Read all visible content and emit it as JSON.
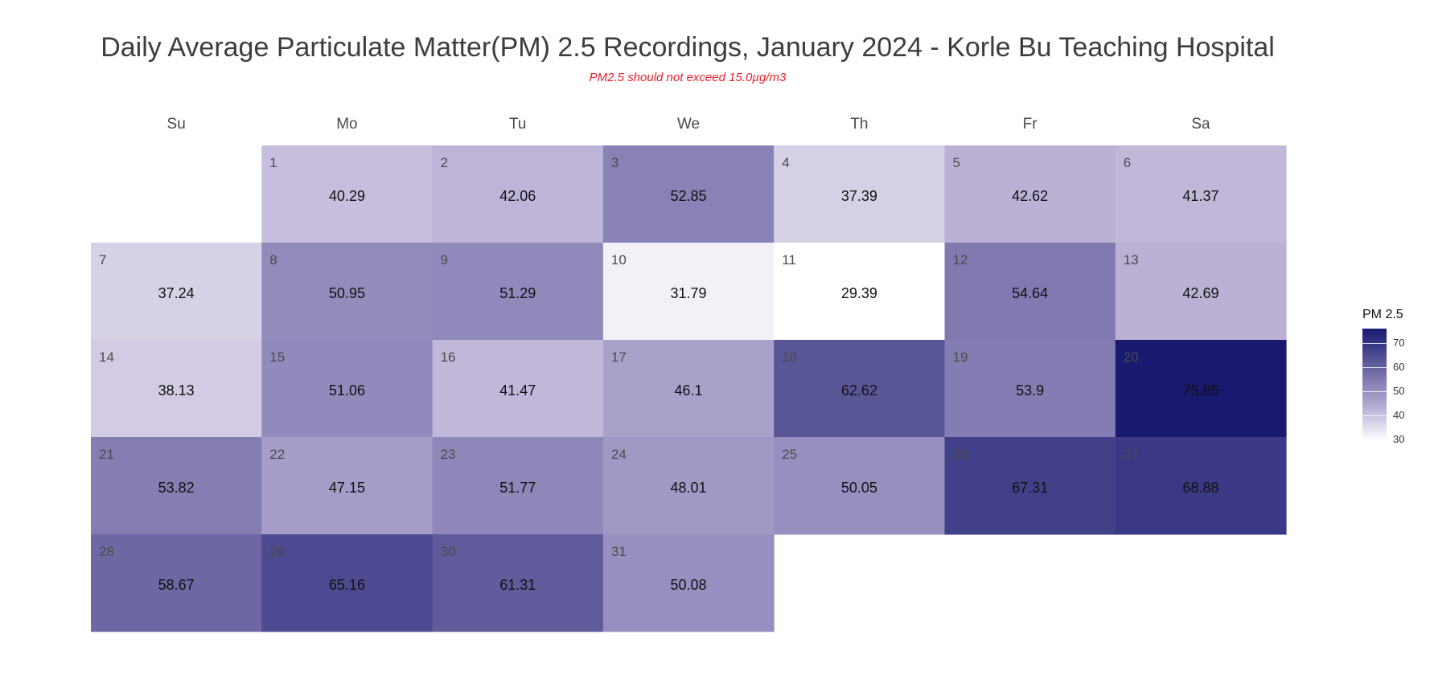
{
  "chart_data": {
    "type": "heatmap",
    "title": "Daily Average Particulate Matter(PM) 2.5 Recordings, January 2024 - Korle Bu Teaching Hospital",
    "subtitle": "PM2.5 should not exceed 15.0µg/m3",
    "weekdays": [
      "Su",
      "Mo",
      "Tu",
      "We",
      "Th",
      "Fr",
      "Sa"
    ],
    "first_weekday_index": 1,
    "days": [
      {
        "day": 1,
        "value": 40.29
      },
      {
        "day": 2,
        "value": 42.06
      },
      {
        "day": 3,
        "value": 52.85
      },
      {
        "day": 4,
        "value": 37.39
      },
      {
        "day": 5,
        "value": 42.62
      },
      {
        "day": 6,
        "value": 41.37
      },
      {
        "day": 7,
        "value": 37.24
      },
      {
        "day": 8,
        "value": 50.95
      },
      {
        "day": 9,
        "value": 51.29
      },
      {
        "day": 10,
        "value": 31.79
      },
      {
        "day": 11,
        "value": 29.39
      },
      {
        "day": 12,
        "value": 54.64
      },
      {
        "day": 13,
        "value": 42.69
      },
      {
        "day": 14,
        "value": 38.13
      },
      {
        "day": 15,
        "value": 51.06
      },
      {
        "day": 16,
        "value": 41.47
      },
      {
        "day": 17,
        "value": 46.1
      },
      {
        "day": 18,
        "value": 62.62
      },
      {
        "day": 19,
        "value": 53.9
      },
      {
        "day": 20,
        "value": 75.85
      },
      {
        "day": 21,
        "value": 53.82
      },
      {
        "day": 22,
        "value": 47.15
      },
      {
        "day": 23,
        "value": 51.77
      },
      {
        "day": 24,
        "value": 48.01
      },
      {
        "day": 25,
        "value": 50.05
      },
      {
        "day": 26,
        "value": 67.31
      },
      {
        "day": 27,
        "value": 68.88
      },
      {
        "day": 28,
        "value": 58.67
      },
      {
        "day": 29,
        "value": 65.16
      },
      {
        "day": 30,
        "value": 61.31
      },
      {
        "day": 31,
        "value": 50.08
      }
    ],
    "legend": {
      "title": "PM 2.5",
      "ticks": [
        30,
        40,
        50,
        60,
        70
      ],
      "range": [
        29.39,
        75.85
      ],
      "color_low": "#ffffff",
      "color_high": "#191970"
    }
  }
}
